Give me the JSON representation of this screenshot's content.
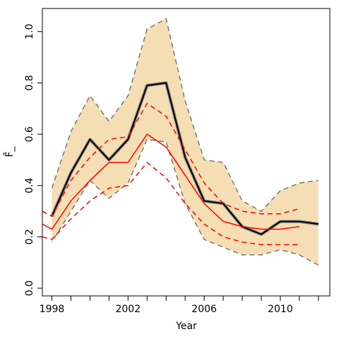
{
  "chart_data": {
    "type": "line",
    "xlabel": "Year",
    "ylabel": "F̄_",
    "xlim": [
      1997.5,
      2012.6
    ],
    "ylim": [
      -0.03,
      1.09
    ],
    "x_ticks": [
      1998,
      2002,
      2006,
      2010
    ],
    "x_tick_labels": [
      "1998",
      "2002",
      "2006",
      "2010"
    ],
    "x_minor_ticks": [
      1998,
      1999,
      2000,
      2001,
      2002,
      2003,
      2004,
      2005,
      2006,
      2007,
      2008,
      2009,
      2010,
      2011,
      2012
    ],
    "y_ticks": [
      0.0,
      0.2,
      0.4,
      0.6,
      0.8,
      1.0
    ],
    "y_tick_labels": [
      "0.0",
      "0.2",
      "0.4",
      "0.6",
      "0.8",
      "1.0"
    ],
    "grid": false,
    "legend": "none",
    "colors": {
      "band_fill": "#f5deb3",
      "band_edge": "#777777",
      "estimate_black": "#000000",
      "estimate_halo": "#888888",
      "red": "#ff0000"
    },
    "series": [
      {
        "role": "confidence-band",
        "x": [
          1998,
          1999,
          2000,
          2001,
          2002,
          2003,
          2004,
          2005,
          2006,
          2007,
          2008,
          2009,
          2010,
          2011,
          2012
        ],
        "upper": [
          0.39,
          0.61,
          0.75,
          0.65,
          0.75,
          1.01,
          1.05,
          0.73,
          0.5,
          0.49,
          0.34,
          0.3,
          0.38,
          0.41,
          0.42
        ],
        "lower": [
          0.18,
          0.3,
          0.42,
          0.35,
          0.41,
          0.58,
          0.57,
          0.33,
          0.19,
          0.16,
          0.13,
          0.13,
          0.15,
          0.13,
          0.09
        ]
      },
      {
        "role": "estimate-black",
        "x": [
          1998,
          1999,
          2000,
          2001,
          2002,
          2003,
          2004,
          2005,
          2006,
          2007,
          2008,
          2009,
          2010,
          2011,
          2012
        ],
        "values": [
          0.28,
          0.45,
          0.58,
          0.5,
          0.58,
          0.79,
          0.8,
          0.51,
          0.34,
          0.33,
          0.24,
          0.21,
          0.26,
          0.26,
          0.25
        ]
      },
      {
        "role": "red-solid",
        "x": [
          1997.5,
          1998,
          1999,
          2000,
          2001,
          2002,
          2003,
          2004,
          2005,
          2006,
          2007,
          2008,
          2009,
          2010,
          2011
        ],
        "values": [
          0.25,
          0.23,
          0.34,
          0.42,
          0.49,
          0.49,
          0.6,
          0.55,
          0.44,
          0.33,
          0.26,
          0.24,
          0.23,
          0.23,
          0.24
        ]
      },
      {
        "role": "red-dashed-upper",
        "x": [
          1997.5,
          1998,
          1999,
          2000,
          2001,
          2002,
          2003,
          2004,
          2005,
          2006,
          2007,
          2008,
          2009,
          2010,
          2011
        ],
        "values": [
          0.3,
          0.28,
          0.42,
          0.51,
          0.58,
          0.59,
          0.72,
          0.67,
          0.54,
          0.41,
          0.33,
          0.3,
          0.29,
          0.29,
          0.31
        ]
      },
      {
        "role": "red-dashed-lower",
        "x": [
          1997.5,
          1998,
          1999,
          2000,
          2001,
          2002,
          2003,
          2004,
          2005,
          2006,
          2007,
          2008,
          2009,
          2010,
          2011
        ],
        "values": [
          0.2,
          0.19,
          0.27,
          0.34,
          0.39,
          0.4,
          0.49,
          0.43,
          0.33,
          0.25,
          0.2,
          0.18,
          0.17,
          0.17,
          0.17
        ]
      }
    ]
  }
}
